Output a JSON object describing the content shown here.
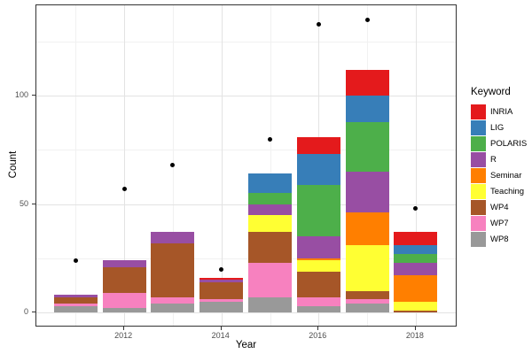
{
  "chart_data": {
    "type": "bar",
    "stacked": true,
    "xlabel": "Year",
    "ylabel": "Count",
    "legend_title": "Keyword",
    "legend_position": "right",
    "categories": [
      2011,
      2012,
      2013,
      2014,
      2015,
      2016,
      2017,
      2018
    ],
    "series": [
      {
        "name": "INRIA",
        "color": "#E41A1C",
        "values": [
          0,
          0,
          0,
          1,
          0,
          8,
          12,
          6
        ]
      },
      {
        "name": "LIG",
        "color": "#377EB8",
        "values": [
          0,
          0,
          0,
          0,
          9,
          14,
          12,
          4
        ]
      },
      {
        "name": "POLARIS",
        "color": "#4DAF4A",
        "values": [
          0,
          0,
          0,
          0,
          5,
          24,
          23,
          4
        ]
      },
      {
        "name": "R",
        "color": "#984EA3",
        "values": [
          1,
          3,
          5,
          1,
          5,
          10,
          19,
          6
        ]
      },
      {
        "name": "Seminar",
        "color": "#FF7F00",
        "values": [
          0,
          0,
          0,
          0,
          0,
          1,
          15,
          12
        ]
      },
      {
        "name": "Teaching",
        "color": "#FFFF33",
        "values": [
          0,
          0,
          0,
          0,
          8,
          5,
          21,
          4
        ]
      },
      {
        "name": "WP4",
        "color": "#A65628",
        "values": [
          3,
          12,
          25,
          8,
          14,
          12,
          4,
          1
        ]
      },
      {
        "name": "WP7",
        "color": "#F781BF",
        "values": [
          1,
          7,
          3,
          1,
          16,
          4,
          2,
          0
        ]
      },
      {
        "name": "WP8",
        "color": "#999999",
        "values": [
          3,
          2,
          4,
          5,
          7,
          3,
          4,
          0
        ]
      }
    ],
    "bar_totals": [
      8,
      24,
      37,
      16,
      64,
      81,
      112,
      37
    ],
    "points": {
      "name": "yearly-total-dots",
      "color": "#000000",
      "values": [
        24,
        57,
        68,
        20,
        80,
        133,
        135,
        48
      ]
    },
    "y_axis": {
      "ticks": [
        0,
        50,
        100
      ],
      "minor_ticks": [
        25,
        75,
        125
      ],
      "range": [
        -7,
        142
      ]
    },
    "x_axis": {
      "ticks": [
        2012,
        2014,
        2016,
        2018
      ],
      "minor_ticks": [
        2011,
        2013,
        2015,
        2017
      ]
    },
    "grid": true,
    "theme": {
      "panel_border": "#333333",
      "grid_major": "#e3e3e3",
      "grid_minor": "#f1f1f1",
      "tick_label_color": "#4d4d4d",
      "point_color": "#000000"
    }
  }
}
